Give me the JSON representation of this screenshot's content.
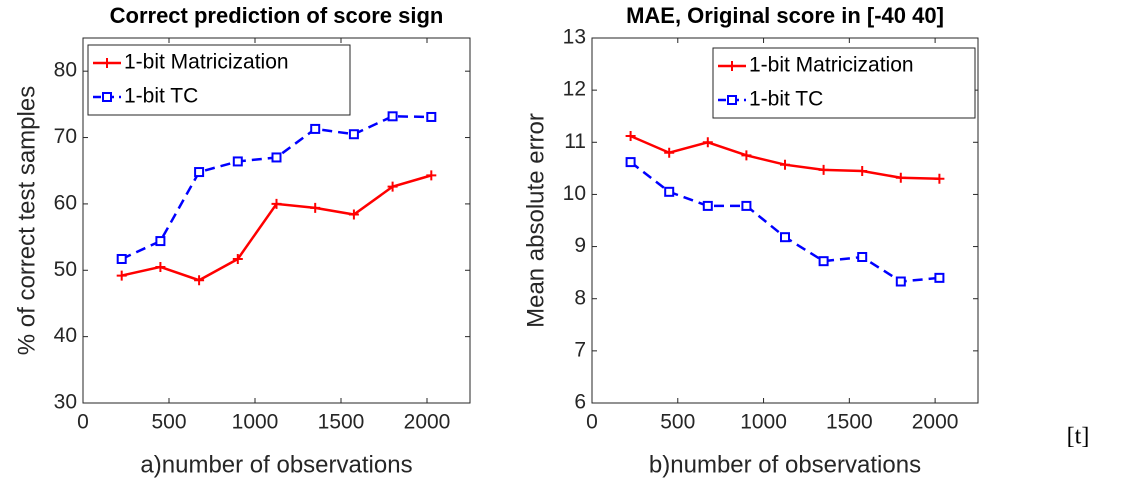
{
  "chart_data": [
    {
      "type": "line",
      "title": "Correct prediction of score sign",
      "x_label": "a)number of observations",
      "y_label": "% of correct test samples",
      "x": [
        225,
        450,
        675,
        900,
        1125,
        1350,
        1575,
        1800,
        2025
      ],
      "series": [
        {
          "name": "1-bit Matricization",
          "color": "#ff0000",
          "line_style": "solid",
          "marker": "plus",
          "values": [
            49.2,
            50.5,
            48.5,
            51.7,
            60,
            59.4,
            58.4,
            62.6,
            64.3
          ]
        },
        {
          "name": "1-bit TC",
          "color": "#0000ff",
          "line_style": "dashed",
          "marker": "square",
          "values": [
            51.7,
            54.4,
            64.8,
            66.4,
            67,
            71.3,
            70.5,
            73.2,
            73.1
          ]
        }
      ],
      "xlim": [
        0,
        2250
      ],
      "xticks": [
        0,
        500,
        1000,
        1500,
        2000
      ],
      "ylim": [
        30,
        85
      ],
      "yticks": [
        30,
        40,
        50,
        60,
        70,
        80
      ],
      "legend": "upper left"
    },
    {
      "type": "line",
      "title": "MAE, Original score in [-40 40]",
      "x_label": "b)number of observations",
      "y_label": "Mean absolute error",
      "x": [
        225,
        450,
        675,
        900,
        1125,
        1350,
        1575,
        1800,
        2025
      ],
      "series": [
        {
          "name": "1-bit Matricization",
          "color": "#ff0000",
          "line_style": "solid",
          "marker": "plus",
          "values": [
            11.12,
            10.8,
            11.0,
            10.75,
            10.57,
            10.47,
            10.45,
            10.32,
            10.3
          ]
        },
        {
          "name": "1-bit TC",
          "color": "#0000ff",
          "line_style": "dashed",
          "marker": "square",
          "values": [
            10.62,
            10.05,
            9.78,
            9.78,
            9.18,
            8.72,
            8.8,
            8.33,
            8.4
          ]
        }
      ],
      "xlim": [
        0,
        2250
      ],
      "xticks": [
        0,
        500,
        1000,
        1500,
        2000
      ],
      "ylim": [
        6,
        13
      ],
      "yticks": [
        6,
        7,
        8,
        9,
        10,
        11,
        12,
        13
      ],
      "legend": "upper right"
    }
  ],
  "note": "[t]"
}
